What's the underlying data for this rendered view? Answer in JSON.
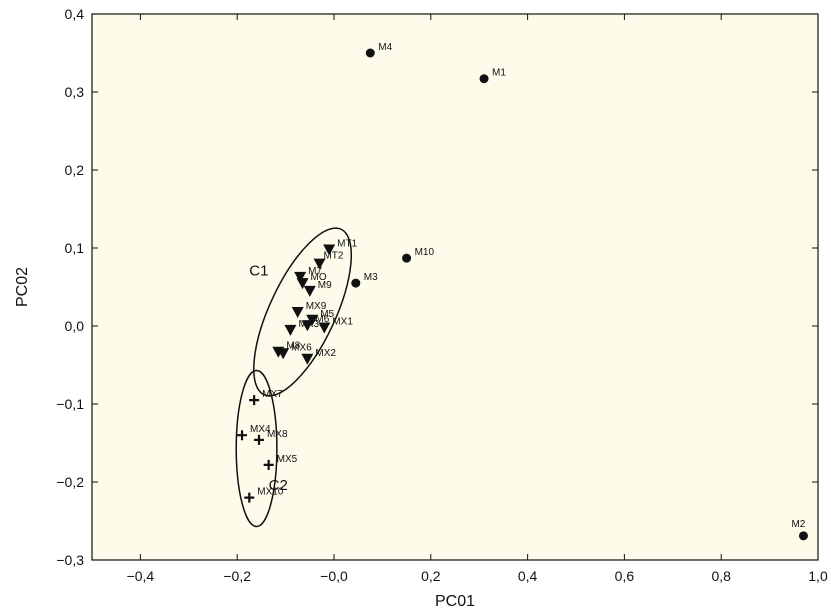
{
  "chart_data": {
    "type": "scatter",
    "xlabel": "PC01",
    "ylabel": "PC02",
    "xlim": [
      -0.5,
      1.0
    ],
    "ylim": [
      -0.3,
      0.4
    ],
    "x_ticks": [
      "−0,4",
      "−0,2",
      "−0,0",
      "0,2",
      "0,4",
      "0,6",
      "0,8",
      "1,0"
    ],
    "x_tick_values": [
      -0.4,
      -0.2,
      0.0,
      0.2,
      0.4,
      0.6,
      0.8,
      1.0
    ],
    "y_ticks": [
      "−0,3",
      "−0,2",
      "−0,1",
      "0,0",
      "0,1",
      "0,2",
      "0,3",
      "0,4"
    ],
    "y_tick_values": [
      -0.3,
      -0.2,
      -0.1,
      0.0,
      0.1,
      0.2,
      0.3,
      0.4
    ],
    "plot_background": "#fdfbe9",
    "series": [
      {
        "marker": "circle",
        "points": [
          {
            "label": "M4",
            "x": 0.075,
            "y": 0.35
          },
          {
            "label": "M1",
            "x": 0.31,
            "y": 0.317
          },
          {
            "label": "M10",
            "x": 0.15,
            "y": 0.087
          },
          {
            "label": "M3",
            "x": 0.045,
            "y": 0.055
          },
          {
            "label": "M2",
            "x": 0.97,
            "y": -0.269
          }
        ]
      },
      {
        "marker": "triangle-down",
        "points": [
          {
            "label": "MT1",
            "x": -0.01,
            "y": 0.098
          },
          {
            "label": "MT2",
            "x": -0.03,
            "y": 0.08
          },
          {
            "label": "M7",
            "x": -0.07,
            "y": 0.063
          },
          {
            "label": "MO",
            "x": -0.065,
            "y": 0.055
          },
          {
            "label": "M9",
            "x": -0.05,
            "y": 0.045
          },
          {
            "label": "MX9",
            "x": -0.075,
            "y": 0.018
          },
          {
            "label": "M5",
            "x": -0.045,
            "y": 0.008
          },
          {
            "label": "M6",
            "x": -0.055,
            "y": 0.001
          },
          {
            "label": "MX1",
            "x": -0.02,
            "y": -0.002
          },
          {
            "label": "MX3",
            "x": -0.09,
            "y": -0.005
          },
          {
            "label": "M8",
            "x": -0.115,
            "y": -0.033
          },
          {
            "label": "MX6",
            "x": -0.105,
            "y": -0.035
          },
          {
            "label": "MX2",
            "x": -0.055,
            "y": -0.042
          }
        ]
      },
      {
        "marker": "plus",
        "points": [
          {
            "label": "MX7",
            "x": -0.165,
            "y": -0.095
          },
          {
            "label": "MX4",
            "x": -0.19,
            "y": -0.14
          },
          {
            "label": "MX8",
            "x": -0.155,
            "y": -0.146
          },
          {
            "label": "MX5",
            "x": -0.135,
            "y": -0.178
          },
          {
            "label": "MX10",
            "x": -0.175,
            "y": -0.22
          }
        ]
      }
    ],
    "clusters": [
      {
        "label": "C1",
        "cx": -0.065,
        "cy": 0.018,
        "rx": 0.068,
        "ry": 0.117,
        "rotation_deg": 25
      },
      {
        "label": "C2",
        "cx": -0.16,
        "cy": -0.157,
        "rx": 0.042,
        "ry": 0.1,
        "rotation_deg": 0
      }
    ]
  }
}
